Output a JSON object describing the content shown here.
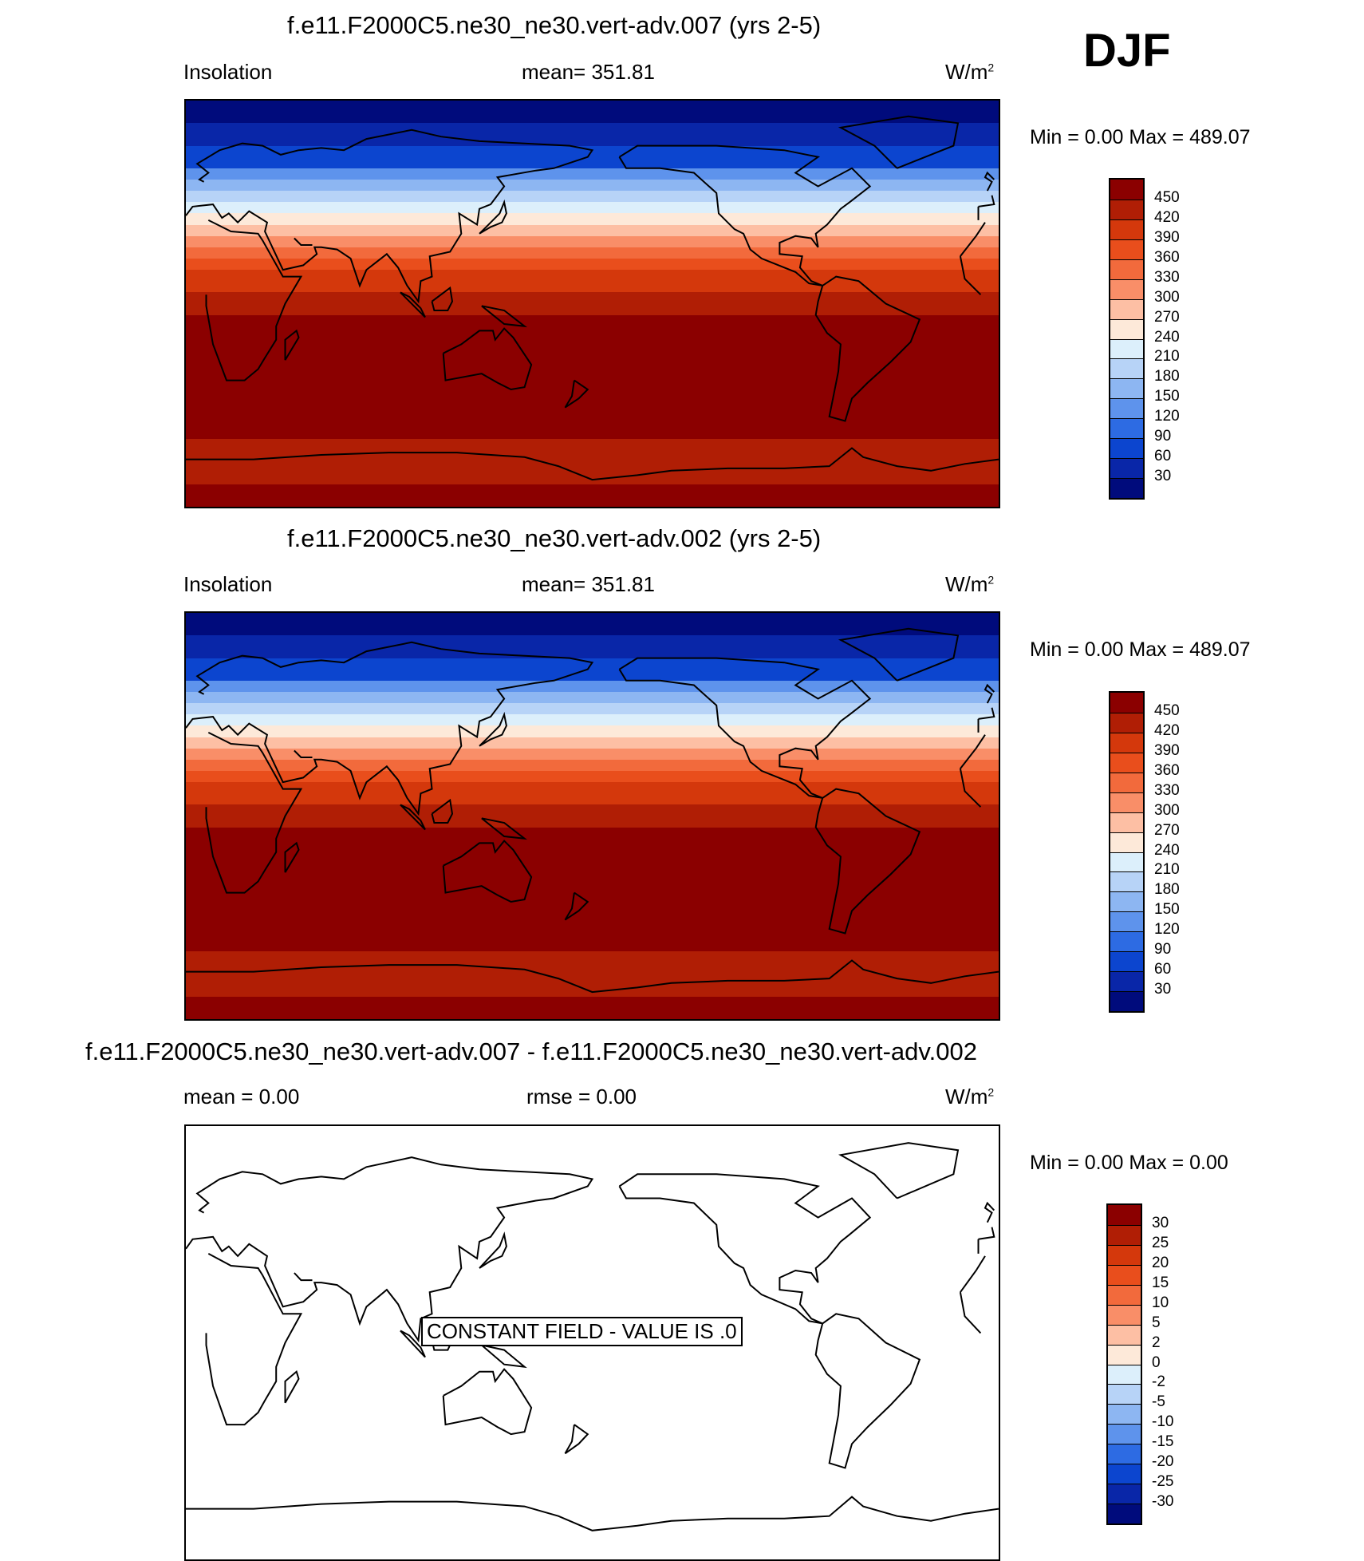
{
  "season": "DJF",
  "panels": [
    {
      "title": "f.e11.F2000C5.ne30_ne30.vert-adv.007 (yrs 2-5)",
      "left_label": "Insolation",
      "center_label": "mean= 351.81",
      "units_base": "W/m",
      "units_exp": "2",
      "minmax": "Min =    0.00 Max = 489.07",
      "message": ""
    },
    {
      "title": "f.e11.F2000C5.ne30_ne30.vert-adv.002 (yrs 2-5)",
      "left_label": "Insolation",
      "center_label": "mean= 351.81",
      "units_base": "W/m",
      "units_exp": "2",
      "minmax": "Min =    0.00 Max = 489.07",
      "message": ""
    },
    {
      "title": "f.e11.F2000C5.ne30_ne30.vert-adv.007 - f.e11.F2000C5.ne30_ne30.vert-adv.002",
      "left_label": "mean =   0.00",
      "center_label": "rmse =   0.00",
      "units_base": "W/m",
      "units_exp": "2",
      "minmax": "Min =    0.00 Max =    0.00",
      "message": "CONSTANT FIELD - VALUE IS .0"
    }
  ],
  "colorbars": {
    "insolation": {
      "labels": [
        "450",
        "420",
        "390",
        "360",
        "330",
        "300",
        "270",
        "240",
        "210",
        "180",
        "150",
        "120",
        "90",
        "60",
        "30"
      ],
      "colors": [
        "#8b0000",
        "#b01e05",
        "#d4380c",
        "#e94e1c",
        "#f26a3c",
        "#f98e68",
        "#fdbfa4",
        "#fde9d9",
        "#dceffb",
        "#b7d3f7",
        "#8db6f2",
        "#5e93ec",
        "#2d6be3",
        "#0c45cf",
        "#0926a8",
        "#000b7c"
      ]
    },
    "difference": {
      "labels": [
        "30",
        "25",
        "20",
        "15",
        "10",
        "5",
        "2",
        "0",
        "-2",
        "-5",
        "-10",
        "-15",
        "-20",
        "-25",
        "-30"
      ],
      "colors": [
        "#8b0000",
        "#b01e05",
        "#d4380c",
        "#e94e1c",
        "#f26a3c",
        "#f98e68",
        "#fdbfa4",
        "#fde9d9",
        "#dceffb",
        "#b7d3f7",
        "#8db6f2",
        "#5e93ec",
        "#2d6be3",
        "#0c45cf",
        "#0926a8",
        "#000b7c"
      ]
    }
  },
  "insolation_field": {
    "latitude_bands_deg": [
      90,
      80,
      70,
      60,
      55,
      50,
      45,
      40,
      35,
      30,
      25,
      20,
      15,
      10,
      5,
      0,
      -5,
      -10,
      -60,
      -70,
      -80,
      -90
    ],
    "band_colors": [
      "#000b7c",
      "#0926a8",
      "#0c45cf",
      "#5e93ec",
      "#8db6f2",
      "#b7d3f7",
      "#dceffb",
      "#fde9d9",
      "#fdbfa4",
      "#f98e68",
      "#f26a3c",
      "#e94e1c",
      "#d4380c",
      "#d4380c",
      "#b01e05",
      "#b01e05",
      "#8b0000",
      "#8b0000",
      "#b01e05",
      "#b01e05",
      "#8b0000"
    ]
  },
  "difference_field_color": "#ffffff",
  "coastline_color": "#000000"
}
